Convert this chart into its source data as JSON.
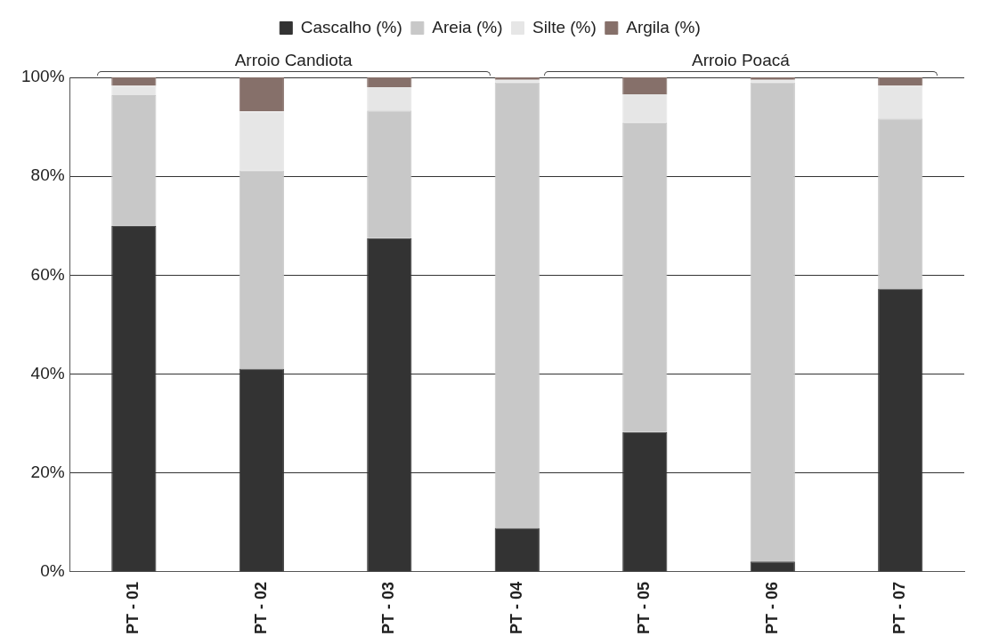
{
  "chart_data": {
    "type": "bar",
    "stacked": true,
    "categories": [
      "PT - 01",
      "PT - 02",
      "PT - 03",
      "PT - 04",
      "PT - 05",
      "PT - 06",
      "PT - 07"
    ],
    "series": [
      {
        "name": "Cascalho (%)",
        "color": "#333333",
        "values": [
          70,
          41.1,
          67.5,
          8.9,
          28.3,
          2.1,
          57.3
        ]
      },
      {
        "name": "Areia (%)",
        "color": "#c8c8c8",
        "values": [
          26.4,
          40.1,
          25.8,
          90.1,
          62.6,
          96.9,
          34.4
        ]
      },
      {
        "name": "Silte (%)",
        "color": "#e6e6e6",
        "values": [
          1.9,
          11.9,
          4.7,
          0.5,
          5.7,
          0.5,
          6.6
        ]
      },
      {
        "name": "Argila (%)",
        "color": "#86706a",
        "values": [
          1.7,
          6.9,
          2,
          0.5,
          3.4,
          0.5,
          1.7
        ]
      }
    ],
    "ylim": [
      0,
      100
    ],
    "yticks": [
      {
        "value": 0,
        "label": "0%"
      },
      {
        "value": 20,
        "label": "20%"
      },
      {
        "value": 40,
        "label": "40%"
      },
      {
        "value": 60,
        "label": "60%"
      },
      {
        "value": 80,
        "label": "80%"
      },
      {
        "value": 100,
        "label": "100%"
      }
    ],
    "grid": "y",
    "legend": "top",
    "annotations": [
      "Arroio Candiota",
      "Arroio Poacá"
    ]
  }
}
